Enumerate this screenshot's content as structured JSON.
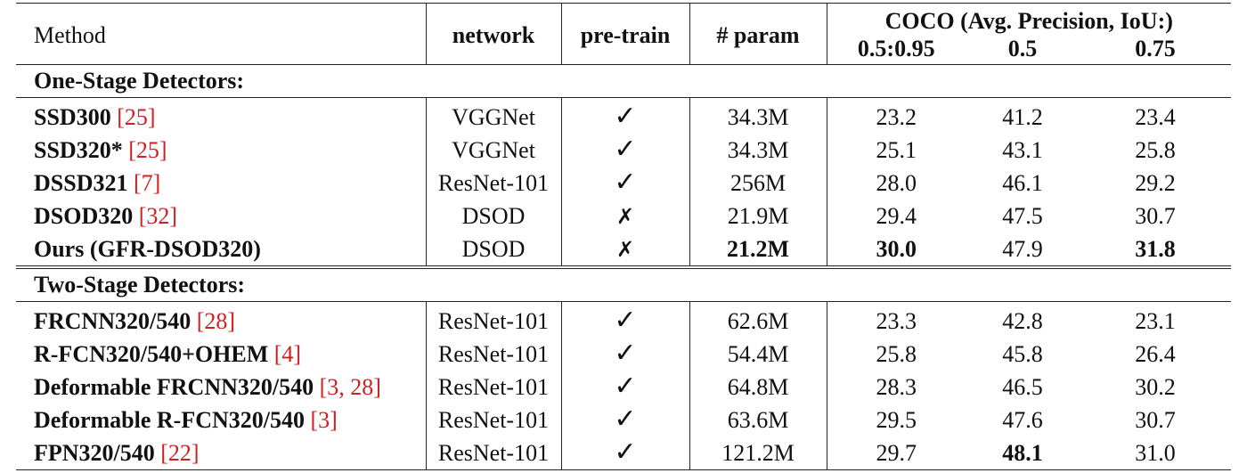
{
  "header": {
    "method": "Method",
    "network": "network",
    "pretrain": "pre-train",
    "param": "# param",
    "coco": "COCO (Avg. Precision, IoU:)",
    "ap_cols": [
      "0.5:0.95",
      "0.5",
      "0.75"
    ]
  },
  "sections": [
    {
      "title": "One-Stage Detectors:",
      "rows": [
        {
          "name": "SSD300",
          "cite": "[25]",
          "network": "VGGNet",
          "pretrain": "✓",
          "param": "34.3M",
          "ap": [
            "23.2",
            "41.2",
            "23.4"
          ]
        },
        {
          "name": "SSD320*",
          "cite": "[25]",
          "network": "VGGNet",
          "pretrain": "✓",
          "param": "34.3M",
          "ap": [
            "25.1",
            "43.1",
            "25.8"
          ]
        },
        {
          "name": "DSSD321",
          "cite": "[7]",
          "network": "ResNet-101",
          "pretrain": "✓",
          "param": "256M",
          "ap": [
            "28.0",
            "46.1",
            "29.2"
          ]
        },
        {
          "name": "DSOD320",
          "cite": "[32]",
          "network": "DSOD",
          "pretrain": "✗",
          "param": "21.9M",
          "ap": [
            "29.4",
            "47.5",
            "30.7"
          ]
        },
        {
          "name": "Ours (GFR-DSOD320)",
          "cite": "",
          "network": "DSOD",
          "pretrain": "✗",
          "param": "21.2M",
          "ap": [
            "30.0",
            "47.9",
            "31.8"
          ]
        }
      ]
    },
    {
      "title": "Two-Stage Detectors:",
      "rows": [
        {
          "name": "FRCNN320/540",
          "cite": "[28]",
          "network": "ResNet-101",
          "pretrain": "✓",
          "param": "62.6M",
          "ap": [
            "23.3",
            "42.8",
            "23.1"
          ]
        },
        {
          "name": "R-FCN320/540+OHEM",
          "cite": "[4]",
          "network": "ResNet-101",
          "pretrain": "✓",
          "param": "54.4M",
          "ap": [
            "25.8",
            "45.8",
            "26.4"
          ]
        },
        {
          "name": "Deformable FRCNN320/540",
          "cite": "[3, 28]",
          "network": "ResNet-101",
          "pretrain": "✓",
          "param": "64.8M",
          "ap": [
            "28.3",
            "46.5",
            "30.2"
          ]
        },
        {
          "name": "Deformable R-FCN320/540",
          "cite": "[3]",
          "network": "ResNet-101",
          "pretrain": "✓",
          "param": "63.6M",
          "ap": [
            "29.5",
            "47.6",
            "30.7"
          ]
        },
        {
          "name": "FPN320/540",
          "cite": "[22]",
          "network": "ResNet-101",
          "pretrain": "✓",
          "param": "121.2M",
          "ap": [
            "29.7",
            "48.1",
            "31.0"
          ]
        }
      ]
    }
  ]
}
